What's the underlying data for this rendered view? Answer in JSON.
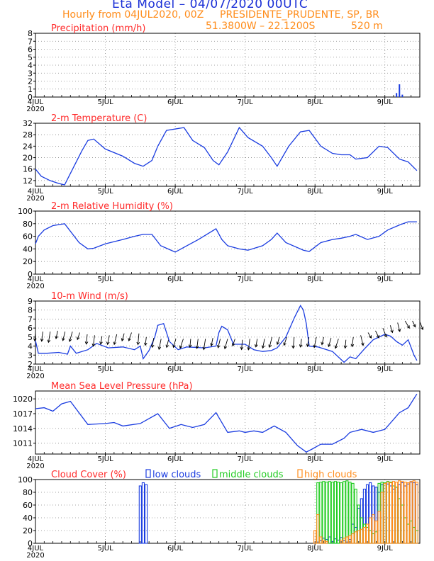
{
  "header": {
    "title": "Eta Model – 04/07/2020 00UTC",
    "subtitle": "Hourly from 04JUL2020, 00Z",
    "location": "PRESIDENTE_PRUDENTE, SP, BR",
    "coords": "51.3800W – 22.1200S",
    "elevation": "520  m"
  },
  "colors": {
    "title": "#1a2fd6",
    "header": "#ff8c1a",
    "panel_title": "#ff2a2a",
    "line": "#1a3ce0",
    "wind_arrows": "#000000",
    "low_clouds": "#1a3ce0",
    "middle_clouds": "#22cc22",
    "high_clouds": "#ff8c1a"
  },
  "x_axis": {
    "start_label": "4JUL",
    "start_year": "2020",
    "tick_labels": [
      "5JUL",
      "6JUL",
      "7JUL",
      "8JUL",
      "9JUL"
    ],
    "hours_total": 132,
    "tick_hours": [
      24,
      48,
      72,
      96,
      120
    ]
  },
  "chart_data": [
    {
      "type": "bar",
      "title": "Precipitation (mm/h)",
      "ylim": [
        0,
        8
      ],
      "yticks": [
        "0",
        "1",
        "2",
        "3",
        "4",
        "5",
        "6",
        "7",
        "8"
      ],
      "x": [
        124,
        125,
        126
      ],
      "values": [
        0.5,
        1.6,
        0.3
      ]
    },
    {
      "type": "line",
      "title": "2-m Temperature (C)",
      "ylim": [
        10,
        32
      ],
      "yticks": [
        "12",
        "16",
        "20",
        "24",
        "28",
        "32"
      ],
      "x": [
        0,
        2,
        5,
        8,
        10,
        13,
        16,
        18,
        20,
        24,
        30,
        34,
        37,
        40,
        42,
        45,
        51,
        54,
        58,
        61,
        63,
        66,
        70,
        73,
        78,
        81,
        83,
        87,
        91,
        94,
        98,
        102,
        105,
        108,
        110,
        114,
        118,
        121,
        125,
        128,
        131
      ],
      "values": [
        16,
        13.5,
        12,
        11,
        10.5,
        16.5,
        22.5,
        26,
        26.5,
        23,
        20.5,
        18,
        17,
        19,
        24,
        29.5,
        30.5,
        26,
        23.5,
        19,
        17.5,
        22,
        30.5,
        27,
        24,
        20,
        17,
        24,
        29,
        29.5,
        24,
        21.5,
        21,
        21,
        19.5,
        20,
        24,
        23.5,
        19.5,
        18.5,
        15.5
      ]
    },
    {
      "type": "line",
      "title": "2-m Relative Humidity (%)",
      "ylim": [
        0,
        100
      ],
      "yticks": [
        "0",
        "20",
        "40",
        "60",
        "80",
        "100"
      ],
      "x": [
        0,
        1,
        3,
        6,
        10,
        15,
        18,
        20,
        24,
        30,
        34,
        37,
        40,
        43,
        48,
        52,
        56,
        62,
        64,
        66,
        70,
        73,
        78,
        81,
        83,
        86,
        92,
        94,
        98,
        102,
        105,
        108,
        110,
        114,
        118,
        121,
        125,
        128,
        131
      ],
      "values": [
        48,
        60,
        70,
        77,
        80,
        50,
        40,
        41,
        48,
        55,
        60,
        63,
        63,
        45,
        35,
        45,
        55,
        72,
        55,
        45,
        40,
        38,
        45,
        55,
        65,
        50,
        38,
        36,
        50,
        55,
        57,
        60,
        63,
        55,
        60,
        70,
        78,
        83,
        83
      ]
    },
    {
      "type": "line",
      "title": "10-m Wind (m/s)",
      "ylim": [
        2,
        9
      ],
      "yticks": [
        "2",
        "3",
        "4",
        "5",
        "6",
        "7",
        "8",
        "9"
      ],
      "x": [
        0,
        1,
        4,
        8,
        11,
        12,
        14,
        18,
        21,
        25,
        30,
        34,
        36,
        37,
        39,
        41,
        42,
        44,
        46,
        49,
        52,
        58,
        62,
        63,
        64,
        66,
        68,
        72,
        75,
        78,
        81,
        83,
        86,
        89,
        91,
        92,
        93,
        94,
        97,
        99,
        102,
        106,
        108,
        110,
        113,
        116,
        120,
        122,
        124,
        126,
        128,
        130,
        131
      ],
      "values": [
        4.6,
        3.2,
        3.2,
        3.3,
        3.1,
        4,
        3.2,
        3.6,
        4.3,
        3.8,
        3.9,
        3.6,
        4,
        2.6,
        3.5,
        5,
        6.3,
        6.5,
        4.5,
        3.6,
        3.9,
        3.8,
        4,
        5.5,
        6.2,
        5.8,
        4.2,
        4.2,
        3.6,
        3.4,
        3.5,
        3.8,
        5,
        7.2,
        8.5,
        8,
        6.5,
        4,
        3.9,
        3.7,
        3.4,
        2.2,
        2.8,
        2.6,
        3.7,
        4.7,
        5.3,
        5.1,
        4.5,
        4.1,
        4.7,
        3,
        2.4
      ],
      "wind_arrow_speeds": [
        5.5,
        5.6,
        5.6,
        5.7,
        5.6,
        5.6,
        5.5,
        5.3,
        5.2,
        5.1,
        5.2,
        5.3,
        5.4,
        5.5,
        5.4,
        5.0,
        4.9,
        4.8,
        4.7,
        4.8,
        4.8,
        4.8,
        4.8,
        4.8,
        4.9,
        4.8,
        4.8,
        4.8,
        4.7,
        4.8,
        4.8,
        4.8,
        5.0,
        5.0,
        5.0,
        5.0,
        4.8,
        5.0,
        5.0,
        5.0,
        4.9,
        4.8,
        4.7,
        5.0,
        5.2,
        5.5,
        5.7,
        6.0,
        6.3,
        6.6,
        6.8,
        6.8,
        6.7
      ]
    },
    {
      "type": "line",
      "title": "Mean Sea Level Pressure (hPa)",
      "ylim": [
        1008.8,
        1021.6
      ],
      "yticks": [
        "1011",
        "1014",
        "1017",
        "1020"
      ],
      "x": [
        0,
        3,
        6,
        9,
        12,
        18,
        24,
        27,
        30,
        36,
        42,
        46,
        50,
        54,
        58,
        62,
        66,
        70,
        72,
        75,
        78,
        82,
        86,
        90,
        93,
        95,
        98,
        102,
        106,
        108,
        112,
        116,
        120,
        125,
        128,
        131
      ],
      "values": [
        1018,
        1018.2,
        1017.5,
        1019,
        1019.5,
        1014.8,
        1015,
        1015.2,
        1014.5,
        1015,
        1017,
        1014,
        1014.8,
        1014.2,
        1014.8,
        1017.2,
        1013.2,
        1013.5,
        1013.2,
        1013.5,
        1013.2,
        1014.5,
        1013.2,
        1010.5,
        1009.2,
        1009.8,
        1010.8,
        1010.8,
        1012,
        1013.2,
        1013.8,
        1013.2,
        1013.8,
        1017.2,
        1018.2,
        1021
      ]
    },
    {
      "type": "bar",
      "title": "Cloud Cover (%)",
      "legend": [
        "low clouds",
        "middle clouds",
        "high clouds"
      ],
      "ylim": [
        0,
        100
      ],
      "yticks": [
        "0",
        "20",
        "40",
        "60",
        "80",
        "100"
      ],
      "series": [
        {
          "name": "low clouds",
          "x": [
            36,
            37,
            38,
            97,
            98,
            99,
            100,
            101,
            102,
            103,
            104,
            105,
            106,
            107,
            108,
            109,
            110,
            111,
            112,
            113,
            114,
            115,
            116,
            117,
            118,
            119,
            120,
            121,
            122,
            123,
            124,
            125,
            126,
            127,
            128,
            129,
            130,
            131
          ],
          "values": [
            90,
            95,
            92,
            2,
            4,
            8,
            6,
            10,
            3,
            7,
            5,
            9,
            4,
            2,
            6,
            30,
            25,
            55,
            70,
            85,
            92,
            95,
            90,
            88,
            80,
            92,
            95,
            93,
            90,
            85,
            88,
            92,
            95,
            90,
            93,
            96,
            95,
            92
          ]
        },
        {
          "name": "middle clouds",
          "x": [
            97,
            98,
            99,
            100,
            101,
            102,
            103,
            104,
            105,
            106,
            107,
            108,
            109,
            110,
            111,
            112,
            113,
            114,
            115,
            116,
            117,
            118,
            119,
            120,
            121,
            122,
            123,
            124,
            125,
            126,
            127,
            128,
            129,
            130,
            131
          ],
          "values": [
            95,
            96,
            97,
            96,
            97,
            96,
            97,
            96,
            95,
            97,
            98,
            96,
            94,
            85,
            60,
            40,
            30,
            25,
            20,
            15,
            18,
            94,
            96,
            95,
            97,
            96,
            90,
            88,
            70,
            60,
            40,
            30,
            35,
            25,
            20
          ]
        },
        {
          "name": "high clouds",
          "x": [
            96,
            97,
            98,
            99,
            100,
            105,
            106,
            107,
            108,
            109,
            110,
            111,
            112,
            113,
            114,
            115,
            116,
            117,
            118,
            119,
            120,
            121,
            122,
            123,
            124,
            125,
            126,
            127,
            128,
            129,
            130,
            131
          ],
          "values": [
            20,
            45,
            10,
            5,
            3,
            5,
            8,
            10,
            12,
            15,
            18,
            20,
            22,
            25,
            30,
            40,
            45,
            35,
            50,
            80,
            94,
            96,
            95,
            97,
            96,
            98,
            97,
            96,
            95,
            97,
            98,
            96
          ]
        }
      ]
    }
  ]
}
